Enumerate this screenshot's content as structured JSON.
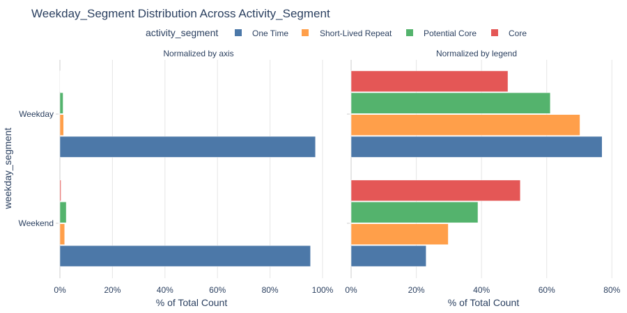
{
  "chart_data": {
    "type": "bar",
    "orientation": "horizontal",
    "title": "Weekday_Segment Distribution Across Activity_Segment",
    "legend_title": "activity_segment",
    "legend_position": "top-center",
    "ylabel": "weekday_segment",
    "categories": [
      "Weekday",
      "Weekend"
    ],
    "series_names": [
      "One Time",
      "Short-Lived Repeat",
      "Potential Core",
      "Core"
    ],
    "colors": [
      "#4c78a8",
      "#ff9f4a",
      "#54b36d",
      "#e45756"
    ],
    "panels": [
      {
        "subtitle": "Normalized by axis",
        "xlabel": "% of Total Count",
        "xlim": [
          0,
          100
        ],
        "xticks": [
          0,
          20,
          40,
          60,
          80,
          100
        ],
        "xtick_labels": [
          "0%",
          "20%",
          "40%",
          "60%",
          "80%",
          "100%"
        ],
        "series": [
          {
            "name": "One Time",
            "values": [
              97.3,
              95.4
            ]
          },
          {
            "name": "Short-Lived Repeat",
            "values": [
              1.4,
              1.8
            ]
          },
          {
            "name": "Potential Core",
            "values": [
              1.2,
              2.4
            ]
          },
          {
            "name": "Core",
            "values": [
              0.1,
              0.4
            ]
          }
        ]
      },
      {
        "subtitle": "Normalized by legend",
        "xlabel": "% of Total Count",
        "xlim": [
          0,
          81
        ],
        "xticks": [
          0,
          20,
          40,
          60,
          80
        ],
        "xtick_labels": [
          "0%",
          "20%",
          "40%",
          "60%",
          "80%"
        ],
        "series": [
          {
            "name": "One Time",
            "values": [
              77.0,
              23.0
            ]
          },
          {
            "name": "Short-Lived Repeat",
            "values": [
              70.2,
              29.8
            ]
          },
          {
            "name": "Potential Core",
            "values": [
              61.1,
              38.9
            ]
          },
          {
            "name": "Core",
            "values": [
              48.1,
              51.9
            ]
          }
        ]
      }
    ]
  }
}
